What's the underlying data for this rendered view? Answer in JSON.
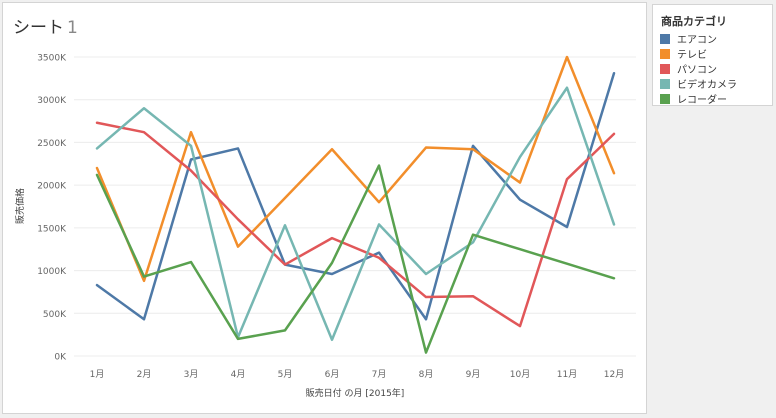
{
  "sheet": {
    "title": "シート",
    "title_num": "1"
  },
  "legend": {
    "title": "商品カテゴリ"
  },
  "chart_data": {
    "type": "line",
    "xlabel": "販売日付 の月 [2015年]",
    "ylabel": "販売価格",
    "ylim": [
      0,
      3500
    ],
    "yticks": [
      0,
      500,
      1000,
      1500,
      2000,
      2500,
      3000,
      3500
    ],
    "ytick_labels": [
      "0K",
      "500K",
      "1000K",
      "1500K",
      "2000K",
      "2500K",
      "3000K",
      "3500K"
    ],
    "categories": [
      "1月",
      "2月",
      "3月",
      "4月",
      "5月",
      "6月",
      "7月",
      "8月",
      "9月",
      "10月",
      "11月",
      "12月"
    ],
    "grid": true,
    "legend_position": "right",
    "series": [
      {
        "name": "エアコン",
        "color": "#4e79a7",
        "values": [
          830,
          430,
          2300,
          2430,
          1070,
          960,
          1210,
          430,
          2460,
          1830,
          1510,
          3310
        ]
      },
      {
        "name": "テレビ",
        "color": "#f28e2b",
        "values": [
          2200,
          880,
          2620,
          1280,
          1850,
          2420,
          1800,
          2440,
          2420,
          2030,
          3500,
          2140
        ]
      },
      {
        "name": "パソコン",
        "color": "#e15759",
        "values": [
          2730,
          2620,
          2170,
          1600,
          1070,
          1380,
          1150,
          690,
          700,
          350,
          2070,
          2600
        ]
      },
      {
        "name": "ビデオカメラ",
        "color": "#76b7b2",
        "values": [
          2430,
          2900,
          2460,
          220,
          1530,
          190,
          1540,
          960,
          1330,
          2330,
          3140,
          1540
        ]
      },
      {
        "name": "レコーダー",
        "color": "#59a14f",
        "values": [
          2120,
          930,
          1100,
          200,
          300,
          1090,
          2230,
          40,
          1420,
          1250,
          1080,
          910
        ]
      }
    ]
  }
}
